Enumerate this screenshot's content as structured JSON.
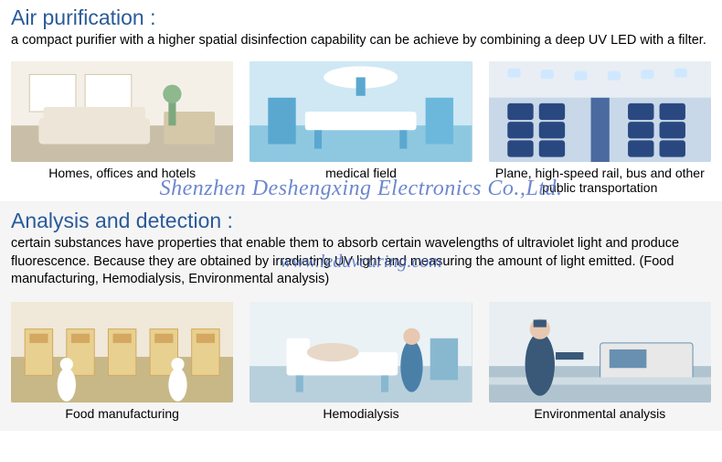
{
  "section1": {
    "title": "Air purification :",
    "desc": "a compact purifier with a higher spatial disinfection capability can be achieve by combining a deep UV LED with a filter.",
    "title_color": "#2a5a9a",
    "cards": [
      {
        "caption": "Homes, offices and hotels",
        "scene": "living-room"
      },
      {
        "caption": "medical field",
        "scene": "operating-room"
      },
      {
        "caption": "Plane, high-speed rail, bus and other public transportation",
        "scene": "airplane-cabin"
      }
    ]
  },
  "section2": {
    "title": "Analysis and detection :",
    "desc": "certain substances have properties that enable them to absorb certain wavelengths of ultraviolet light and produce fluorescence. Because they are obtained by irradiating UV light and measuring the amount of light emitted. (Food manufacturing, Hemodialysis, Environmental analysis)",
    "title_color": "#2a5a9a",
    "bg": "#f5f5f5",
    "cards": [
      {
        "caption": "Food manufacturing",
        "scene": "food-factory"
      },
      {
        "caption": "Hemodialysis",
        "scene": "hospital-room"
      },
      {
        "caption": "Environmental analysis",
        "scene": "lab-analysis"
      }
    ]
  },
  "watermark": {
    "line1": "Shenzhen Deshengxing Electronics Co.,Ltd.",
    "line2": "www.leduvcuring.com",
    "color": "#3b5fbf"
  },
  "scenes": {
    "living-room": {
      "bg1": "#f4f0e8",
      "bg2": "#e8e2d4",
      "accent": "#d4c8a8",
      "floor": "#c9bfa8",
      "window": "#ffffff",
      "sofa": "#ede6d8"
    },
    "operating-room": {
      "bg1": "#cfe8f4",
      "bg2": "#a8d4ea",
      "accent": "#6bb8dc",
      "floor": "#8ec8e0",
      "light": "#ffffff",
      "equip": "#5aa8d0"
    },
    "airplane-cabin": {
      "bg1": "#e8eef4",
      "bg2": "#c8d8e8",
      "accent": "#3a5890",
      "floor": "#4a6aa0",
      "seat": "#2a4880",
      "window": "#d0e8ff"
    },
    "food-factory": {
      "bg1": "#f0e8d8",
      "bg2": "#e4d8c0",
      "accent": "#d4a860",
      "floor": "#c8b888",
      "machine": "#e8d090",
      "worker": "#ffffff"
    },
    "hospital-room": {
      "bg1": "#eaf2f6",
      "bg2": "#d4e4ec",
      "accent": "#88b8d0",
      "floor": "#b8d0dc",
      "bed": "#ffffff",
      "person": "#4a80a8"
    },
    "lab-analysis": {
      "bg1": "#e8eef2",
      "bg2": "#d0dce4",
      "accent": "#6890b0",
      "floor": "#b0c4d0",
      "machine": "#e8e8e8",
      "person": "#3a5878"
    }
  }
}
